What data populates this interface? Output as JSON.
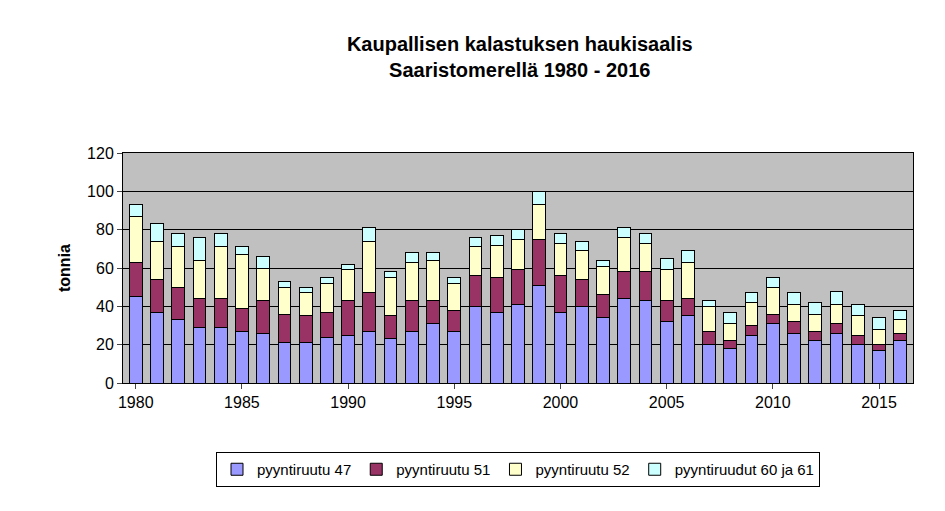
{
  "chart_data": {
    "type": "bar",
    "stacked": true,
    "title": "Kaupallisen kalastuksen haukisaalis\nSaaristomerellä 1980 - 2016",
    "y_label": "tonnia",
    "x": [
      1980,
      1981,
      1982,
      1983,
      1984,
      1985,
      1986,
      1987,
      1988,
      1989,
      1990,
      1991,
      1992,
      1993,
      1994,
      1995,
      1996,
      1997,
      1998,
      1999,
      2000,
      2001,
      2002,
      2003,
      2004,
      2005,
      2006,
      2007,
      2008,
      2009,
      2010,
      2011,
      2012,
      2013,
      2014,
      2015,
      2016
    ],
    "series": [
      {
        "name": "pyyntiruutu 47",
        "color": "#9999ff",
        "values": [
          45,
          37,
          33,
          29,
          29,
          27,
          26,
          21,
          21,
          24,
          25,
          27,
          23,
          27,
          31,
          27,
          40,
          37,
          41,
          51,
          37,
          40,
          34,
          44,
          43,
          32,
          35,
          20,
          18,
          25,
          31,
          26,
          22,
          26,
          20,
          17,
          22
        ]
      },
      {
        "name": "pyyntiruutu 51",
        "color": "#993366",
        "values": [
          18,
          17,
          17,
          15,
          15,
          12,
          17,
          15,
          14,
          13,
          18,
          20,
          12,
          16,
          12,
          11,
          16,
          18,
          18,
          24,
          19,
          14,
          12,
          14,
          15,
          11,
          9,
          7,
          4,
          5,
          5,
          6,
          5,
          5,
          5,
          3,
          4
        ]
      },
      {
        "name": "pyyntiruutu 52",
        "color": "#ffffcc",
        "values": [
          24,
          20,
          21,
          20,
          27,
          28,
          17,
          14,
          12,
          15,
          16,
          27,
          20,
          20,
          21,
          14,
          15,
          17,
          16,
          18,
          17,
          15,
          15,
          18,
          15,
          16,
          19,
          13,
          9,
          12,
          14,
          9,
          9,
          10,
          10,
          8,
          7
        ]
      },
      {
        "name": "pyyntiruudut 60 ja 61",
        "color": "#ccffff",
        "values": [
          6,
          9,
          7,
          12,
          7,
          4,
          6,
          3,
          3,
          3,
          3,
          7,
          3,
          5,
          4,
          3,
          5,
          5,
          5,
          7,
          5,
          5,
          3,
          5,
          5,
          6,
          6,
          3,
          6,
          5,
          5,
          6,
          6,
          7,
          6,
          6,
          5
        ]
      }
    ],
    "xlim": [
      1979.4,
      2016.6
    ],
    "xticks": [
      1980,
      1985,
      1990,
      1995,
      2000,
      2005,
      2010,
      2015
    ],
    "ylim": [
      0,
      120
    ],
    "yticks": [
      0,
      20,
      40,
      60,
      80,
      100,
      120
    ],
    "grid": true,
    "legend": "bottom"
  }
}
